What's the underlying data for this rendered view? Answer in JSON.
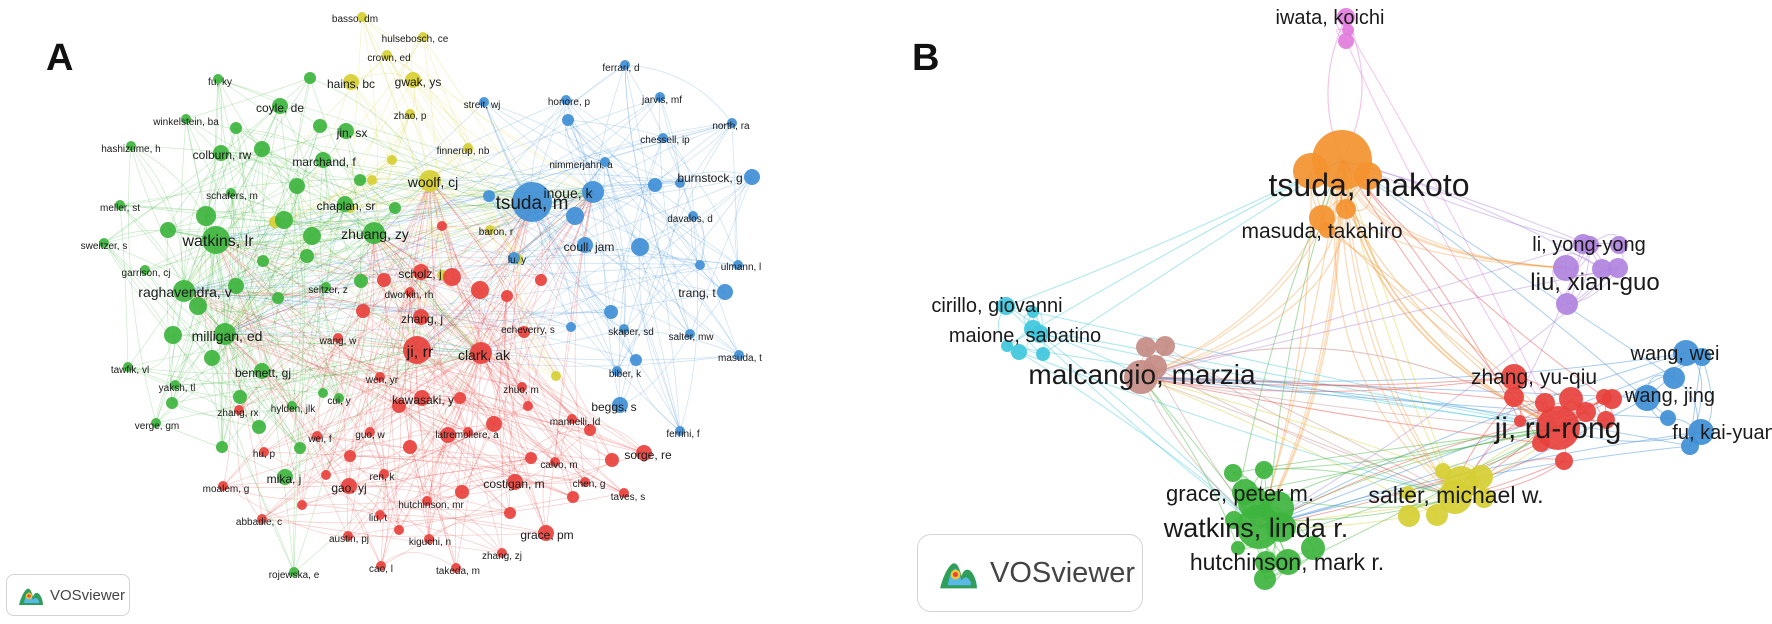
{
  "panel_a": {
    "letter": "A",
    "badge_text": "VOSviewer",
    "colors": {
      "green": "#3db43d",
      "blue": "#3f8fd6",
      "red": "#e8413c",
      "yellow": "#d6cf33"
    },
    "nodes": [
      {
        "label": "tsuda, m",
        "cluster": "blue",
        "weight": 5
      },
      {
        "label": "inoue, k",
        "cluster": "blue",
        "weight": 3
      },
      {
        "label": "burnstock, g",
        "cluster": "blue",
        "weight": 2
      },
      {
        "label": "coull, jam",
        "cluster": "blue",
        "weight": 2
      },
      {
        "label": "trang, t",
        "cluster": "blue",
        "weight": 2
      },
      {
        "label": "ferrari, d",
        "cluster": "blue",
        "weight": 1
      },
      {
        "label": "honore, p",
        "cluster": "blue",
        "weight": 1
      },
      {
        "label": "jarvis, mf",
        "cluster": "blue",
        "weight": 1
      },
      {
        "label": "north, ra",
        "cluster": "blue",
        "weight": 1
      },
      {
        "label": "chessell, ip",
        "cluster": "blue",
        "weight": 1
      },
      {
        "label": "nimmerjahn, a",
        "cluster": "blue",
        "weight": 1
      },
      {
        "label": "davalos, d",
        "cluster": "blue",
        "weight": 1
      },
      {
        "label": "ulmann, l",
        "cluster": "blue",
        "weight": 1
      },
      {
        "label": "skaper, sd",
        "cluster": "blue",
        "weight": 1
      },
      {
        "label": "salter, mw",
        "cluster": "blue",
        "weight": 1
      },
      {
        "label": "masuda, t",
        "cluster": "blue",
        "weight": 1
      },
      {
        "label": "biber, k",
        "cluster": "blue",
        "weight": 1
      },
      {
        "label": "beggs, s",
        "cluster": "blue",
        "weight": 2
      },
      {
        "label": "ferrini, f",
        "cluster": "blue",
        "weight": 1
      },
      {
        "label": "echeverry, s",
        "cluster": "blue",
        "weight": 1
      },
      {
        "label": "streit, wj",
        "cluster": "blue",
        "weight": 1
      },
      {
        "label": "woolf, cj",
        "cluster": "yellow",
        "weight": 3
      },
      {
        "label": "gwak, ys",
        "cluster": "yellow",
        "weight": 2
      },
      {
        "label": "hains, bc",
        "cluster": "yellow",
        "weight": 2
      },
      {
        "label": "basso, dm",
        "cluster": "yellow",
        "weight": 1
      },
      {
        "label": "hulsebosch, ce",
        "cluster": "yellow",
        "weight": 1
      },
      {
        "label": "crown, ed",
        "cluster": "yellow",
        "weight": 1
      },
      {
        "label": "zhao, p",
        "cluster": "yellow",
        "weight": 1
      },
      {
        "label": "finnerup, nb",
        "cluster": "yellow",
        "weight": 1
      },
      {
        "label": "baron, r",
        "cluster": "yellow",
        "weight": 1
      },
      {
        "label": "lu, y",
        "cluster": "yellow",
        "weight": 1
      },
      {
        "label": "watkins, lr",
        "cluster": "green",
        "weight": 4
      },
      {
        "label": "raghavendra, v",
        "cluster": "green",
        "weight": 3
      },
      {
        "label": "milligan, ed",
        "cluster": "green",
        "weight": 3
      },
      {
        "label": "zhuang, zy",
        "cluster": "green",
        "weight": 3
      },
      {
        "label": "colburn, rw",
        "cluster": "green",
        "weight": 2
      },
      {
        "label": "jin, sx",
        "cluster": "green",
        "weight": 2
      },
      {
        "label": "chaplan, sr",
        "cluster": "green",
        "weight": 2
      },
      {
        "label": "marchand, f",
        "cluster": "green",
        "weight": 2
      },
      {
        "label": "coyle, de",
        "cluster": "green",
        "weight": 2
      },
      {
        "label": "bennett, gj",
        "cluster": "green",
        "weight": 2
      },
      {
        "label": "mika, j",
        "cluster": "green",
        "weight": 2
      },
      {
        "label": "fu, ky",
        "cluster": "green",
        "weight": 1
      },
      {
        "label": "winkelstein, ba",
        "cluster": "green",
        "weight": 1
      },
      {
        "label": "hashizume, h",
        "cluster": "green",
        "weight": 1
      },
      {
        "label": "schafers, m",
        "cluster": "green",
        "weight": 1
      },
      {
        "label": "meller, st",
        "cluster": "green",
        "weight": 1
      },
      {
        "label": "sweitzer, s",
        "cluster": "green",
        "weight": 1
      },
      {
        "label": "garrison, cj",
        "cluster": "green",
        "weight": 1
      },
      {
        "label": "seltzer, z",
        "cluster": "green",
        "weight": 1
      },
      {
        "label": "tawfik, vl",
        "cluster": "green",
        "weight": 1
      },
      {
        "label": "yaksh, tl",
        "cluster": "green",
        "weight": 1
      },
      {
        "label": "verge, gm",
        "cluster": "green",
        "weight": 1
      },
      {
        "label": "hylden, jlk",
        "cluster": "green",
        "weight": 1
      },
      {
        "label": "cui, y",
        "cluster": "green",
        "weight": 1
      },
      {
        "label": "rojewska, e",
        "cluster": "green",
        "weight": 1
      },
      {
        "label": "ji, rr",
        "cluster": "red",
        "weight": 4
      },
      {
        "label": "clark, ak",
        "cluster": "red",
        "weight": 3
      },
      {
        "label": "scholz, j",
        "cluster": "red",
        "weight": 2
      },
      {
        "label": "zhang, j",
        "cluster": "red",
        "weight": 2
      },
      {
        "label": "kawasaki, y",
        "cluster": "red",
        "weight": 2
      },
      {
        "label": "gao, yj",
        "cluster": "red",
        "weight": 2
      },
      {
        "label": "sorge, re",
        "cluster": "red",
        "weight": 2
      },
      {
        "label": "dworkin, rh",
        "cluster": "red",
        "weight": 1
      },
      {
        "label": "wang, w",
        "cluster": "red",
        "weight": 1
      },
      {
        "label": "wen, yr",
        "cluster": "red",
        "weight": 1
      },
      {
        "label": "zhuo, m",
        "cluster": "red",
        "weight": 1
      },
      {
        "label": "zhang, rx",
        "cluster": "red",
        "weight": 1
      },
      {
        "label": "guo, w",
        "cluster": "red",
        "weight": 1
      },
      {
        "label": "latremoliere, a",
        "cluster": "red",
        "weight": 1
      },
      {
        "label": "mannelli, ld",
        "cluster": "red",
        "weight": 1
      },
      {
        "label": "wei, f",
        "cluster": "red",
        "weight": 1
      },
      {
        "label": "hu, p",
        "cluster": "red",
        "weight": 1
      },
      {
        "label": "ren, k",
        "cluster": "red",
        "weight": 1
      },
      {
        "label": "calvo, m",
        "cluster": "red",
        "weight": 1
      },
      {
        "label": "chen, g",
        "cluster": "red",
        "weight": 1
      },
      {
        "label": "moalem, g",
        "cluster": "red",
        "weight": 1
      },
      {
        "label": "costigan, m",
        "cluster": "red",
        "weight": 2
      },
      {
        "label": "hutchinson, mr",
        "cluster": "red",
        "weight": 1
      },
      {
        "label": "taves, s",
        "cluster": "red",
        "weight": 1
      },
      {
        "label": "abbadie, c",
        "cluster": "red",
        "weight": 1
      },
      {
        "label": "liu, t",
        "cluster": "red",
        "weight": 1
      },
      {
        "label": "grace, pm",
        "cluster": "red",
        "weight": 2
      },
      {
        "label": "austin, pj",
        "cluster": "red",
        "weight": 1
      },
      {
        "label": "kiguchi, n",
        "cluster": "red",
        "weight": 1
      },
      {
        "label": "zhang, zj",
        "cluster": "red",
        "weight": 1
      },
      {
        "label": "cao, l",
        "cluster": "red",
        "weight": 1
      },
      {
        "label": "takeda, m",
        "cluster": "red",
        "weight": 1
      }
    ]
  },
  "panel_b": {
    "letter": "B",
    "badge_text": "VOSviewer",
    "colors": {
      "orange": "#f4922f",
      "pink": "#e27ddc",
      "purple": "#b083de",
      "blue": "#3f8fd6",
      "cyan": "#3fc7dc",
      "brown": "#c48c84",
      "red": "#e8413c",
      "green": "#3db43d",
      "yellow": "#d6cf33"
    },
    "nodes": [
      {
        "label": "iwata, koichi",
        "cluster": "pink",
        "weight": 1
      },
      {
        "label": "tsuda, makoto",
        "cluster": "orange",
        "weight": 5
      },
      {
        "label": "masuda, takahiro",
        "cluster": "orange",
        "weight": 2
      },
      {
        "label": "li, yong-yong",
        "cluster": "purple",
        "weight": 1
      },
      {
        "label": "liu, xian-guo",
        "cluster": "purple",
        "weight": 2
      },
      {
        "label": "cirillo, giovanni",
        "cluster": "cyan",
        "weight": 1
      },
      {
        "label": "maione, sabatino",
        "cluster": "cyan",
        "weight": 1
      },
      {
        "label": "malcangio, marzia",
        "cluster": "brown",
        "weight": 3
      },
      {
        "label": "wang, wei",
        "cluster": "blue",
        "weight": 2
      },
      {
        "label": "wang, jing",
        "cluster": "blue",
        "weight": 2
      },
      {
        "label": "fu, kai-yuan",
        "cluster": "blue",
        "weight": 2
      },
      {
        "label": "zhang, yu-qiu",
        "cluster": "red",
        "weight": 2
      },
      {
        "label": "ji, ru-rong",
        "cluster": "red",
        "weight": 4
      },
      {
        "label": "salter, michael w.",
        "cluster": "yellow",
        "weight": 3
      },
      {
        "label": "grace, peter m.",
        "cluster": "green",
        "weight": 2
      },
      {
        "label": "watkins, linda r.",
        "cluster": "green",
        "weight": 4
      },
      {
        "label": "hutchinson, mark r.",
        "cluster": "green",
        "weight": 2
      }
    ]
  }
}
